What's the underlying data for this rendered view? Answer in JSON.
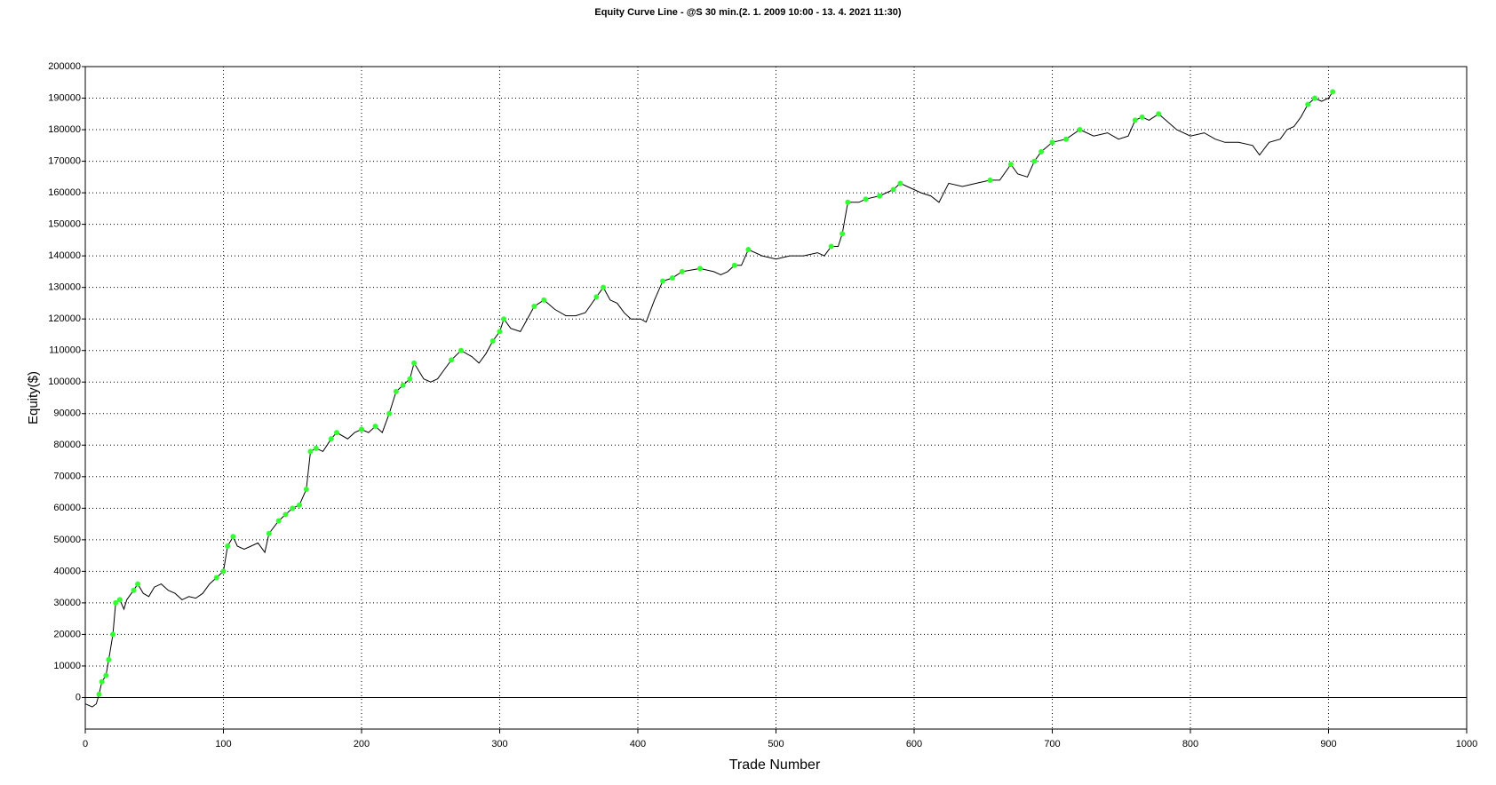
{
  "chart_data": {
    "type": "line",
    "title": "Equity Curve Line - @S 30 min.(2. 1. 2009 10:00 - 13. 4. 2021 11:30)",
    "x_label": "Trade Number",
    "y_label": "Equity($)",
    "xlim": [
      0,
      1000
    ],
    "xticks": [
      0,
      100,
      200,
      300,
      400,
      500,
      600,
      700,
      800,
      900,
      1000
    ],
    "ylim": [
      -10000,
      200000
    ],
    "yticks": [
      0,
      10000,
      20000,
      30000,
      40000,
      50000,
      60000,
      70000,
      80000,
      90000,
      100000,
      110000,
      120000,
      130000,
      140000,
      150000,
      160000,
      170000,
      180000,
      190000,
      200000
    ],
    "grid": true,
    "x": [
      0,
      5,
      8,
      10,
      12,
      15,
      17,
      20,
      22,
      25,
      28,
      30,
      35,
      38,
      42,
      46,
      50,
      55,
      60,
      65,
      70,
      75,
      80,
      85,
      90,
      95,
      100,
      103,
      107,
      110,
      115,
      120,
      125,
      130,
      133,
      140,
      145,
      150,
      155,
      160,
      163,
      167,
      172,
      178,
      182,
      190,
      195,
      200,
      205,
      210,
      215,
      220,
      225,
      230,
      235,
      238,
      245,
      250,
      255,
      260,
      265,
      272,
      280,
      285,
      290,
      295,
      300,
      303,
      308,
      315,
      320,
      325,
      332,
      340,
      348,
      355,
      362,
      370,
      375,
      380,
      385,
      390,
      395,
      402,
      406,
      412,
      418,
      425,
      432,
      445,
      455,
      460,
      465,
      470,
      475,
      480,
      490,
      500,
      510,
      520,
      530,
      535,
      540,
      545,
      548,
      552,
      560,
      565,
      575,
      585,
      590,
      595,
      605,
      612,
      618,
      625,
      635,
      645,
      655,
      662,
      670,
      675,
      682,
      687,
      692,
      700,
      710,
      720,
      730,
      740,
      748,
      755,
      760,
      765,
      770,
      777,
      790,
      800,
      810,
      818,
      825,
      835,
      845,
      850,
      857,
      865,
      870,
      875,
      880,
      885,
      890,
      895,
      900,
      903
    ],
    "series": [
      {
        "color": "#000000",
        "marker_color": "#33ff33",
        "values": [
          -2000,
          -3000,
          -2000,
          1000,
          5000,
          7000,
          12000,
          20000,
          30000,
          31000,
          28000,
          31000,
          34000,
          36000,
          33000,
          32000,
          35000,
          36000,
          34000,
          33000,
          31000,
          32000,
          31500,
          33000,
          36000,
          38000,
          40000,
          48000,
          51000,
          48000,
          47000,
          48000,
          49000,
          46000,
          52000,
          56000,
          58000,
          60000,
          61000,
          66000,
          78000,
          79000,
          78000,
          82000,
          84000,
          82000,
          84000,
          85000,
          84000,
          86000,
          84000,
          90000,
          97000,
          99000,
          101000,
          106000,
          101000,
          100000,
          101000,
          104000,
          107000,
          110000,
          108000,
          106000,
          109000,
          113000,
          116000,
          120000,
          117000,
          116000,
          120000,
          124000,
          126000,
          123000,
          121000,
          121000,
          122000,
          127000,
          130000,
          126000,
          125000,
          122000,
          120000,
          120000,
          119000,
          126000,
          132000,
          133000,
          135000,
          136000,
          135000,
          134000,
          135000,
          137000,
          137000,
          142000,
          140000,
          139000,
          140000,
          140000,
          141000,
          140000,
          143000,
          143000,
          147000,
          157000,
          157000,
          158000,
          159000,
          161000,
          163000,
          162000,
          160000,
          159000,
          157000,
          163000,
          162000,
          163000,
          164000,
          164000,
          169000,
          166000,
          165000,
          170000,
          173000,
          176000,
          177000,
          180000,
          178000,
          179000,
          177000,
          178000,
          183000,
          184000,
          183000,
          185000,
          180000,
          178000,
          179000,
          177000,
          176000,
          176000,
          175000,
          172000,
          176000,
          177000,
          180000,
          181000,
          184000,
          188000,
          190000,
          189000,
          190000,
          192000
        ]
      }
    ]
  }
}
